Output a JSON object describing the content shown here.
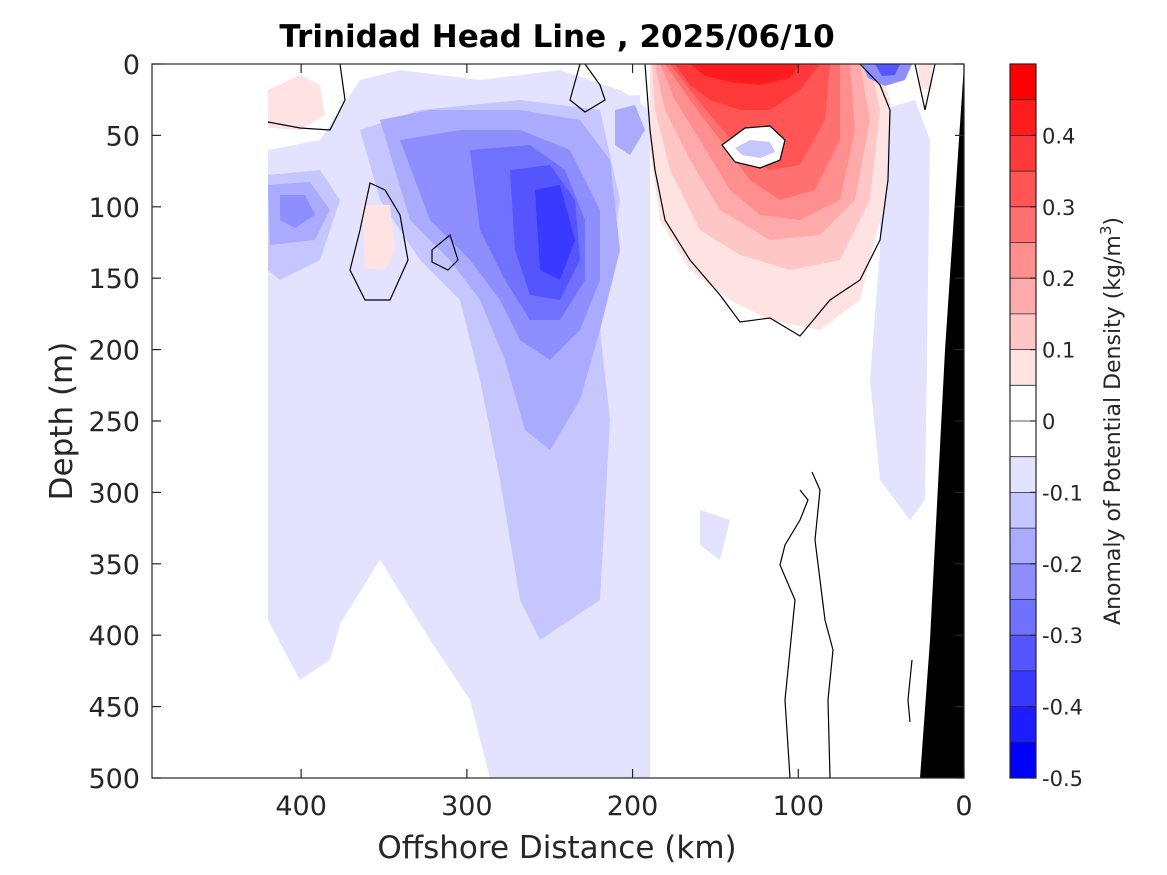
{
  "chart_data": {
    "type": "heatmap",
    "title": "Trinidad Head Line , 2025/06/10",
    "xlabel": "Offshore Distance (km)",
    "ylabel": "Depth (m)",
    "xlim": [
      490,
      0
    ],
    "ylim": [
      0,
      500
    ],
    "x_reversed": true,
    "y_reversed": true,
    "x_ticks": [
      "400",
      "300",
      "200",
      "100",
      "0"
    ],
    "x_tick_values": [
      400,
      300,
      200,
      100,
      0
    ],
    "y_ticks": [
      "0",
      "50",
      "100",
      "150",
      "200",
      "250",
      "300",
      "350",
      "400",
      "450",
      "500"
    ],
    "y_tick_values": [
      0,
      50,
      100,
      150,
      200,
      250,
      300,
      350,
      400,
      450,
      500
    ],
    "grid": false,
    "colorbar": {
      "label": "Anomaly of Potential Density (kg/m",
      "label_superscript": "3",
      "label_suffix": ")",
      "range": [
        -0.5,
        0.5
      ],
      "step": 0.05,
      "tick_labels": [
        "0.4",
        "0.3",
        "0.2",
        "0.1",
        "0",
        "-0.1",
        "-0.2",
        "-0.3",
        "-0.4",
        "-0.5"
      ],
      "tick_values": [
        0.4,
        0.3,
        0.2,
        0.1,
        0,
        -0.1,
        -0.2,
        -0.3,
        -0.4,
        -0.5
      ],
      "level_colors": [
        "#0000ff",
        "#1c1cff",
        "#3939ff",
        "#5555ff",
        "#7171ff",
        "#8e8eff",
        "#aaaaff",
        "#c6c6ff",
        "#e3e3ff",
        "#ffffff",
        "#ffffff",
        "#ffe3e3",
        "#ffc6c6",
        "#ffaaaa",
        "#ff8e8e",
        "#ff7171",
        "#ff5555",
        "#ff3939",
        "#ff1c1c",
        "#ff0000"
      ]
    },
    "data_extent": {
      "x_offshore_max_km": 420,
      "depth_max_m": 500
    },
    "bathymetry_color": "#000000",
    "features": [
      {
        "name": "warm-core positive anomaly near surface",
        "x_range_km": [
          170,
          100
        ],
        "depth_range_m": [
          0,
          30
        ],
        "anomaly": 0.45
      },
      {
        "name": "positive anomaly lobe",
        "x_range_km": [
          150,
          70
        ],
        "depth_range_m": [
          40,
          180
        ],
        "anomaly": 0.25
      },
      {
        "name": "negative anomaly core",
        "x_range_km": [
          270,
          220
        ],
        "depth_range_m": [
          60,
          200
        ],
        "anomaly": -0.4
      },
      {
        "name": "broad negative anomaly band",
        "x_range_km": [
          420,
          190
        ],
        "depth_range_m": [
          0,
          500
        ],
        "anomaly": -0.1
      },
      {
        "name": "small negative eddy inside positive anomaly",
        "x_range_km": [
          145,
          105
        ],
        "depth_range_m": [
          50,
          75
        ],
        "anomaly": -0.15
      },
      {
        "name": "small negative patch near surface",
        "x_range_km": [
          65,
          35
        ],
        "depth_range_m": [
          0,
          15
        ],
        "anomaly": -0.3
      }
    ]
  }
}
